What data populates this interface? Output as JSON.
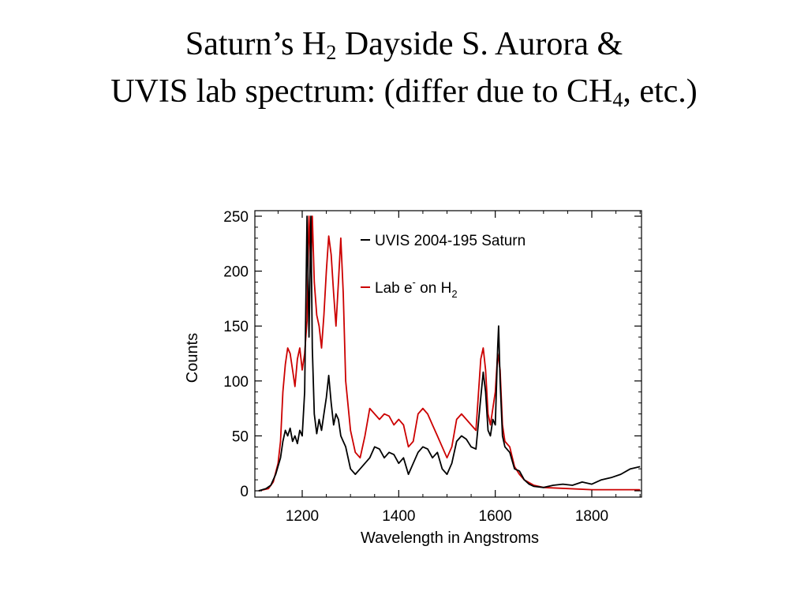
{
  "slide": {
    "title_line1_pre": "Saturn’s H",
    "title_line1_sub": "2",
    "title_line1_post": " Dayside S. Aurora &",
    "title_line2_pre": "UVIS lab spectrum: (differ due to CH",
    "title_line2_sub": "4",
    "title_line2_post": ", etc.)"
  },
  "chart_data": {
    "type": "line",
    "xlabel": "Wavelength in Angstroms",
    "ylabel": "Counts",
    "xlim": [
      1110,
      1900
    ],
    "ylim": [
      0,
      250
    ],
    "xticks": [
      1200,
      1400,
      1600,
      1800
    ],
    "yticks": [
      0,
      50,
      100,
      150,
      200,
      250
    ],
    "grid": false,
    "legend_placement": "top-right",
    "series": [
      {
        "name": "UVIS 2004-195 Saturn",
        "color": "#000000",
        "points": [
          [
            1110,
            0
          ],
          [
            1125,
            2
          ],
          [
            1135,
            5
          ],
          [
            1145,
            15
          ],
          [
            1155,
            30
          ],
          [
            1160,
            45
          ],
          [
            1165,
            55
          ],
          [
            1170,
            50
          ],
          [
            1175,
            57
          ],
          [
            1180,
            45
          ],
          [
            1185,
            50
          ],
          [
            1190,
            43
          ],
          [
            1195,
            55
          ],
          [
            1200,
            50
          ],
          [
            1205,
            90
          ],
          [
            1210,
            250
          ],
          [
            1214,
            140
          ],
          [
            1218,
            250
          ],
          [
            1221,
            130
          ],
          [
            1225,
            70
          ],
          [
            1230,
            52
          ],
          [
            1235,
            65
          ],
          [
            1240,
            55
          ],
          [
            1245,
            70
          ],
          [
            1250,
            85
          ],
          [
            1255,
            105
          ],
          [
            1260,
            80
          ],
          [
            1265,
            60
          ],
          [
            1270,
            70
          ],
          [
            1275,
            65
          ],
          [
            1280,
            50
          ],
          [
            1285,
            45
          ],
          [
            1290,
            40
          ],
          [
            1300,
            20
          ],
          [
            1310,
            15
          ],
          [
            1320,
            20
          ],
          [
            1330,
            25
          ],
          [
            1340,
            30
          ],
          [
            1350,
            40
          ],
          [
            1360,
            38
          ],
          [
            1370,
            30
          ],
          [
            1380,
            35
          ],
          [
            1390,
            33
          ],
          [
            1400,
            25
          ],
          [
            1410,
            30
          ],
          [
            1420,
            15
          ],
          [
            1430,
            25
          ],
          [
            1440,
            35
          ],
          [
            1450,
            40
          ],
          [
            1460,
            38
          ],
          [
            1470,
            30
          ],
          [
            1480,
            35
          ],
          [
            1490,
            20
          ],
          [
            1500,
            15
          ],
          [
            1510,
            25
          ],
          [
            1520,
            45
          ],
          [
            1530,
            50
          ],
          [
            1540,
            47
          ],
          [
            1550,
            40
          ],
          [
            1560,
            38
          ],
          [
            1570,
            85
          ],
          [
            1575,
            108
          ],
          [
            1580,
            90
          ],
          [
            1585,
            55
          ],
          [
            1590,
            50
          ],
          [
            1595,
            65
          ],
          [
            1600,
            60
          ],
          [
            1605,
            130
          ],
          [
            1607,
            150
          ],
          [
            1610,
            100
          ],
          [
            1615,
            50
          ],
          [
            1620,
            40
          ],
          [
            1630,
            35
          ],
          [
            1640,
            20
          ],
          [
            1650,
            18
          ],
          [
            1660,
            10
          ],
          [
            1670,
            6
          ],
          [
            1680,
            4
          ],
          [
            1700,
            3
          ],
          [
            1720,
            5
          ],
          [
            1740,
            6
          ],
          [
            1760,
            5
          ],
          [
            1780,
            8
          ],
          [
            1800,
            6
          ],
          [
            1820,
            10
          ],
          [
            1840,
            12
          ],
          [
            1860,
            15
          ],
          [
            1880,
            20
          ],
          [
            1900,
            22
          ]
        ]
      },
      {
        "name": "Lab e- on H2",
        "color": "#cc0000",
        "points": [
          [
            1110,
            0
          ],
          [
            1130,
            2
          ],
          [
            1140,
            8
          ],
          [
            1150,
            25
          ],
          [
            1155,
            45
          ],
          [
            1160,
            90
          ],
          [
            1165,
            115
          ],
          [
            1170,
            130
          ],
          [
            1175,
            125
          ],
          [
            1180,
            110
          ],
          [
            1185,
            95
          ],
          [
            1190,
            120
          ],
          [
            1195,
            130
          ],
          [
            1200,
            110
          ],
          [
            1205,
            125
          ],
          [
            1210,
            155
          ],
          [
            1214,
            250
          ],
          [
            1218,
            200
          ],
          [
            1221,
            250
          ],
          [
            1225,
            190
          ],
          [
            1230,
            160
          ],
          [
            1235,
            150
          ],
          [
            1240,
            130
          ],
          [
            1245,
            160
          ],
          [
            1250,
            200
          ],
          [
            1255,
            232
          ],
          [
            1260,
            215
          ],
          [
            1265,
            180
          ],
          [
            1270,
            150
          ],
          [
            1275,
            190
          ],
          [
            1280,
            230
          ],
          [
            1285,
            180
          ],
          [
            1290,
            100
          ],
          [
            1300,
            55
          ],
          [
            1310,
            35
          ],
          [
            1320,
            30
          ],
          [
            1330,
            50
          ],
          [
            1340,
            75
          ],
          [
            1350,
            70
          ],
          [
            1360,
            65
          ],
          [
            1370,
            70
          ],
          [
            1380,
            68
          ],
          [
            1390,
            60
          ],
          [
            1400,
            65
          ],
          [
            1410,
            60
          ],
          [
            1420,
            40
          ],
          [
            1430,
            45
          ],
          [
            1440,
            70
          ],
          [
            1450,
            75
          ],
          [
            1460,
            70
          ],
          [
            1470,
            60
          ],
          [
            1480,
            50
          ],
          [
            1490,
            40
          ],
          [
            1500,
            30
          ],
          [
            1510,
            40
          ],
          [
            1520,
            65
          ],
          [
            1530,
            70
          ],
          [
            1540,
            65
          ],
          [
            1550,
            60
          ],
          [
            1560,
            55
          ],
          [
            1570,
            120
          ],
          [
            1575,
            130
          ],
          [
            1580,
            110
          ],
          [
            1585,
            70
          ],
          [
            1590,
            60
          ],
          [
            1595,
            75
          ],
          [
            1600,
            90
          ],
          [
            1605,
            125
          ],
          [
            1610,
            110
          ],
          [
            1615,
            60
          ],
          [
            1620,
            45
          ],
          [
            1630,
            40
          ],
          [
            1640,
            22
          ],
          [
            1650,
            15
          ],
          [
            1660,
            10
          ],
          [
            1680,
            5
          ],
          [
            1700,
            3
          ],
          [
            1750,
            2
          ],
          [
            1800,
            1
          ],
          [
            1850,
            1
          ],
          [
            1900,
            1
          ]
        ]
      }
    ]
  }
}
